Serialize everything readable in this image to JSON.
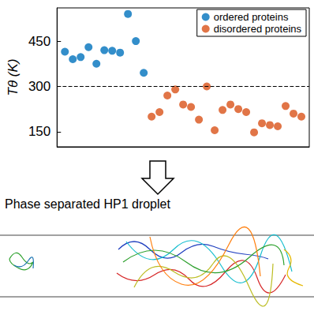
{
  "chart_data": {
    "type": "scatter",
    "y_label": "Tθ (K)",
    "xlim": [
      0,
      32
    ],
    "ylim": [
      100,
      560
    ],
    "yticks": [
      150,
      300,
      450
    ],
    "tick_labels": "y",
    "grid": false,
    "legend": "top-right",
    "marker": "circle",
    "reference_line": {
      "y": 300,
      "line_style": "dashed"
    },
    "series": [
      {
        "name": "ordered proteins",
        "color": "#0072BD",
        "x": [
          1,
          2,
          3,
          4,
          5,
          6,
          7,
          8,
          9,
          10,
          11
        ],
        "values": [
          415,
          390,
          397,
          430,
          375,
          420,
          418,
          412,
          540,
          450,
          345
        ]
      },
      {
        "name": "disordered proteins",
        "color": "#D95319",
        "x": [
          12,
          13,
          14,
          15,
          16,
          17,
          18,
          19,
          20,
          21,
          22,
          23,
          24,
          25,
          26,
          27,
          28,
          29,
          30,
          31
        ],
        "values": [
          200,
          215,
          270,
          290,
          240,
          232,
          190,
          300,
          155,
          222,
          240,
          225,
          215,
          148,
          178,
          172,
          168,
          235,
          210,
          200
        ]
      }
    ]
  },
  "caption": "Phase separated HP1 droplet"
}
